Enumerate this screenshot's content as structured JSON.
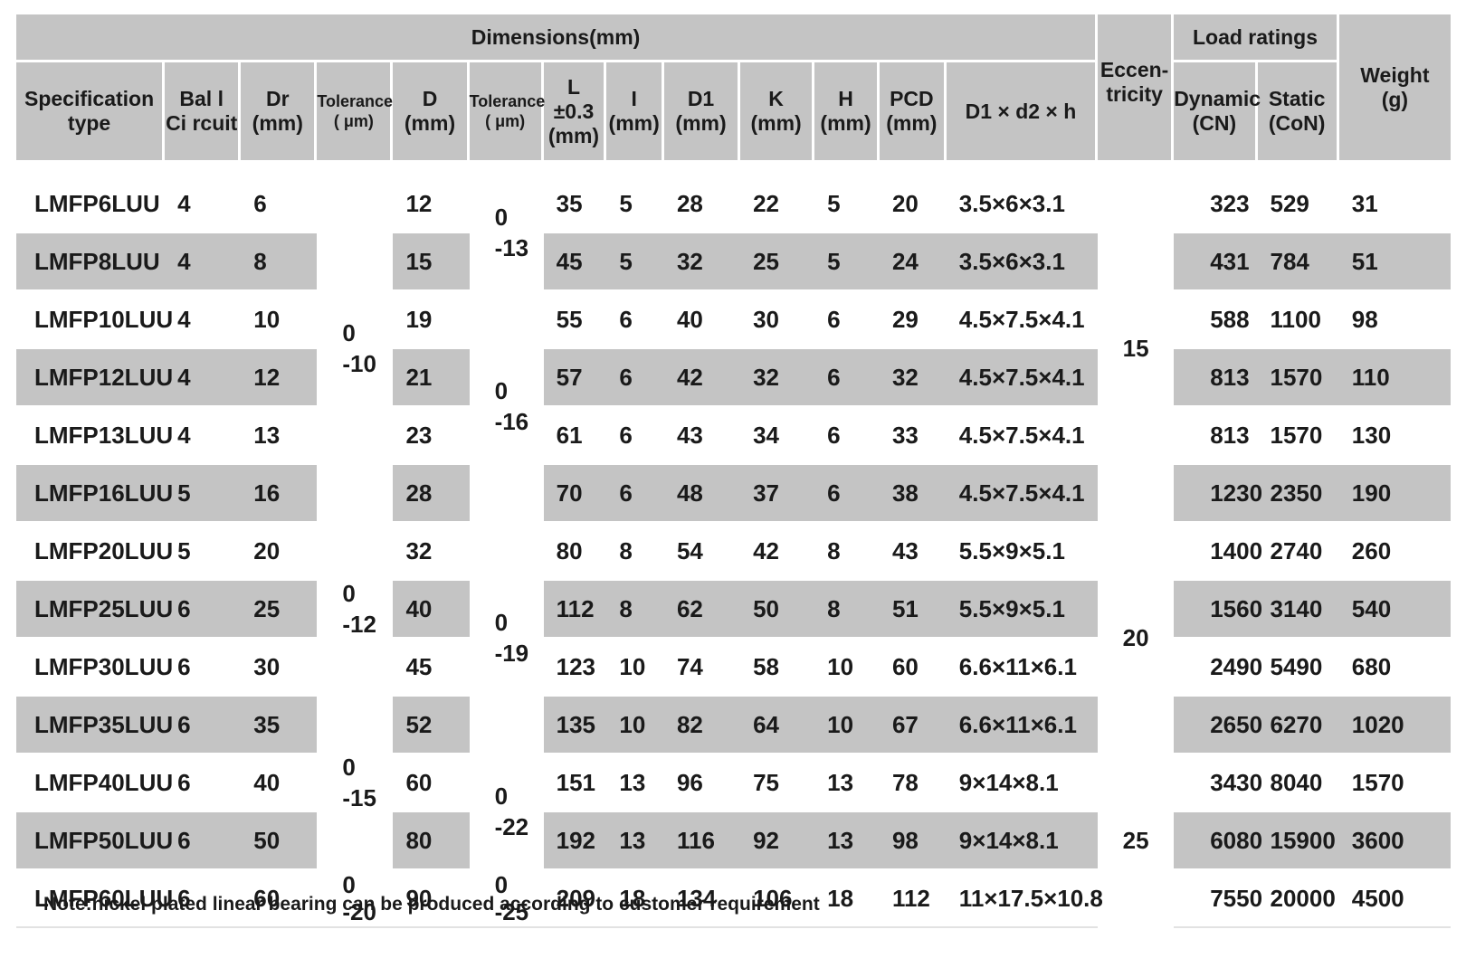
{
  "headers": {
    "dimensions": "Dimensions(mm)",
    "eccentricity": "Eccen-\ntricity",
    "load_ratings": "Load ratings",
    "weight": "Weight\n(g)",
    "spec_type": "Specification\ntype",
    "ball_circuit": "Bal l\nCi rcuit",
    "dr": "Dr\n(mm)",
    "tolerance1": "Tolerance\n( μm)",
    "d": "D\n(mm)",
    "tolerance2": "Tolerance\n( μm)",
    "l": "L\n±0.3\n(mm)",
    "i": "I\n(mm)",
    "d1": "D1\n(mm)",
    "k": "K\n(mm)",
    "h": "H\n(mm)",
    "pcd": "PCD\n(mm)",
    "d1d2h": "D1 × d2 × h",
    "dynamic": "Dynamic\n(CN)",
    "static": "Static\n(CoN)"
  },
  "rows": [
    {
      "spec": "LMFP6LUU",
      "ball": "4",
      "dr": "6",
      "d": "12",
      "l": "35",
      "i": "5",
      "d1": "28",
      "k": "22",
      "h": "5",
      "pcd": "20",
      "d1d2h": "3.5×6×3.1",
      "dyn": "323",
      "stat": "529",
      "weight": "31"
    },
    {
      "spec": "LMFP8LUU",
      "ball": "4",
      "dr": "8",
      "d": "15",
      "l": "45",
      "i": "5",
      "d1": "32",
      "k": "25",
      "h": "5",
      "pcd": "24",
      "d1d2h": "3.5×6×3.1",
      "dyn": "431",
      "stat": "784",
      "weight": "51"
    },
    {
      "spec": "LMFP10LUU",
      "ball": "4",
      "dr": "10",
      "d": "19",
      "l": "55",
      "i": "6",
      "d1": "40",
      "k": "30",
      "h": "6",
      "pcd": "29",
      "d1d2h": "4.5×7.5×4.1",
      "dyn": "588",
      "stat": "1100",
      "weight": "98"
    },
    {
      "spec": "LMFP12LUU",
      "ball": "4",
      "dr": "12",
      "d": "21",
      "l": "57",
      "i": "6",
      "d1": "42",
      "k": "32",
      "h": "6",
      "pcd": "32",
      "d1d2h": "4.5×7.5×4.1",
      "dyn": "813",
      "stat": "1570",
      "weight": "110"
    },
    {
      "spec": "LMFP13LUU",
      "ball": "4",
      "dr": "13",
      "d": "23",
      "l": "61",
      "i": "6",
      "d1": "43",
      "k": "34",
      "h": "6",
      "pcd": "33",
      "d1d2h": "4.5×7.5×4.1",
      "dyn": "813",
      "stat": "1570",
      "weight": "130"
    },
    {
      "spec": "LMFP16LUU",
      "ball": "5",
      "dr": "16",
      "d": "28",
      "l": "70",
      "i": "6",
      "d1": "48",
      "k": "37",
      "h": "6",
      "pcd": "38",
      "d1d2h": "4.5×7.5×4.1",
      "dyn": "1230",
      "stat": "2350",
      "weight": "190"
    },
    {
      "spec": "LMFP20LUU",
      "ball": "5",
      "dr": "20",
      "d": "32",
      "l": "80",
      "i": "8",
      "d1": "54",
      "k": "42",
      "h": "8",
      "pcd": "43",
      "d1d2h": "5.5×9×5.1",
      "dyn": "1400",
      "stat": "2740",
      "weight": "260"
    },
    {
      "spec": "LMFP25LUU",
      "ball": "6",
      "dr": "25",
      "d": "40",
      "l": "112",
      "i": "8",
      "d1": "62",
      "k": "50",
      "h": "8",
      "pcd": "51",
      "d1d2h": "5.5×9×5.1",
      "dyn": "1560",
      "stat": "3140",
      "weight": "540"
    },
    {
      "spec": "LMFP30LUU",
      "ball": "6",
      "dr": "30",
      "d": "45",
      "l": "123",
      "i": "10",
      "d1": "74",
      "k": "58",
      "h": "10",
      "pcd": "60",
      "d1d2h": "6.6×11×6.1",
      "dyn": "2490",
      "stat": "5490",
      "weight": "680"
    },
    {
      "spec": "LMFP35LUU",
      "ball": "6",
      "dr": "35",
      "d": "52",
      "l": "135",
      "i": "10",
      "d1": "82",
      "k": "64",
      "h": "10",
      "pcd": "67",
      "d1d2h": "6.6×11×6.1",
      "dyn": "2650",
      "stat": "6270",
      "weight": "1020"
    },
    {
      "spec": "LMFP40LUU",
      "ball": "6",
      "dr": "40",
      "d": "60",
      "l": "151",
      "i": "13",
      "d1": "96",
      "k": "75",
      "h": "13",
      "pcd": "78",
      "d1d2h": "9×14×8.1",
      "dyn": "3430",
      "stat": "8040",
      "weight": "1570"
    },
    {
      "spec": "LMFP50LUU",
      "ball": "6",
      "dr": "50",
      "d": "80",
      "l": "192",
      "i": "13",
      "d1": "116",
      "k": "92",
      "h": "13",
      "pcd": "98",
      "d1d2h": "9×14×8.1",
      "dyn": "6080",
      "stat": "15900",
      "weight": "3600"
    },
    {
      "spec": "LMFP60LUU",
      "ball": "6",
      "dr": "60",
      "d": "90",
      "l": "209",
      "i": "18",
      "d1": "134",
      "k": "106",
      "h": "18",
      "pcd": "112",
      "d1d2h": "11×17.5×10.8",
      "dyn": "7550",
      "stat": "20000",
      "weight": "4500"
    }
  ],
  "tolerance_dr": [
    {
      "upper": "0",
      "lower": "-10"
    },
    {
      "upper": "0",
      "lower": "-12"
    },
    {
      "upper": "0",
      "lower": "-15"
    },
    {
      "upper": "0",
      "lower": "-20"
    }
  ],
  "tolerance_d": [
    {
      "upper": "0",
      "lower": "-13"
    },
    {
      "upper": "0",
      "lower": "-16"
    },
    {
      "upper": "0",
      "lower": "-19"
    },
    {
      "upper": "0",
      "lower": "-22"
    },
    {
      "upper": "0",
      "lower": "-25"
    }
  ],
  "eccentricity": [
    "15",
    "20",
    "25"
  ],
  "note": "Note:nickel plated linear bearing can be produced according to customer requirement"
}
